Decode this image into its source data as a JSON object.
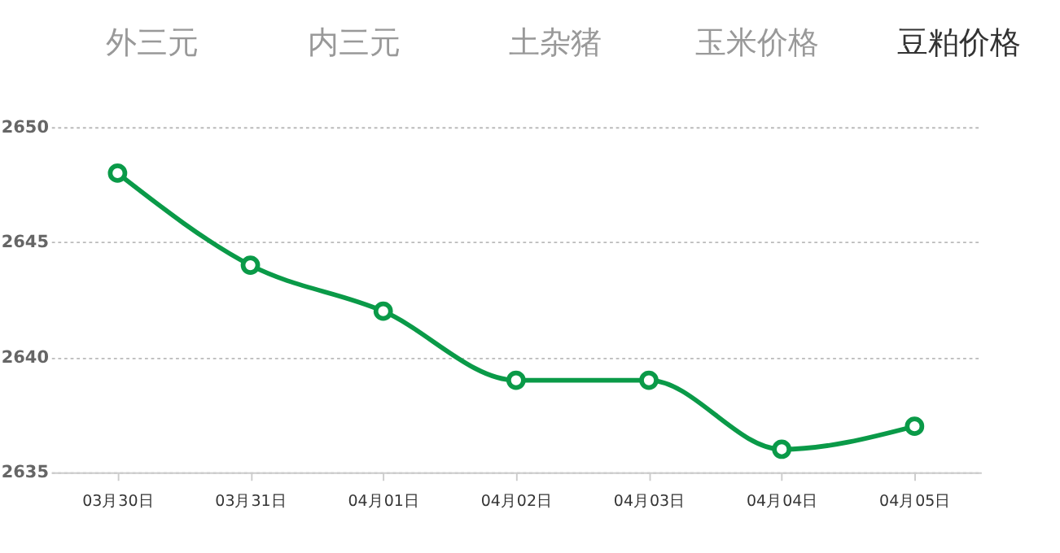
{
  "chart_data": {
    "type": "line",
    "annotations": [
      "外三元",
      "内三元",
      "土杂猪",
      "玉米价格",
      "豆粕价格"
    ],
    "categories": [
      "03月30日",
      "03月31日",
      "04月01日",
      "04月02日",
      "04月03日",
      "04月04日",
      "04月05日"
    ],
    "series": [
      {
        "color": "#0a9a48",
        "values": [
          2648,
          2644,
          2642,
          2639,
          2639,
          2636,
          2637
        ]
      }
    ],
    "ylim": [
      2635,
      2650
    ],
    "yticks": [
      2635,
      2640,
      2645,
      2650
    ],
    "grid": "y",
    "legend": false,
    "marker": "circle",
    "line_style": "solid"
  }
}
